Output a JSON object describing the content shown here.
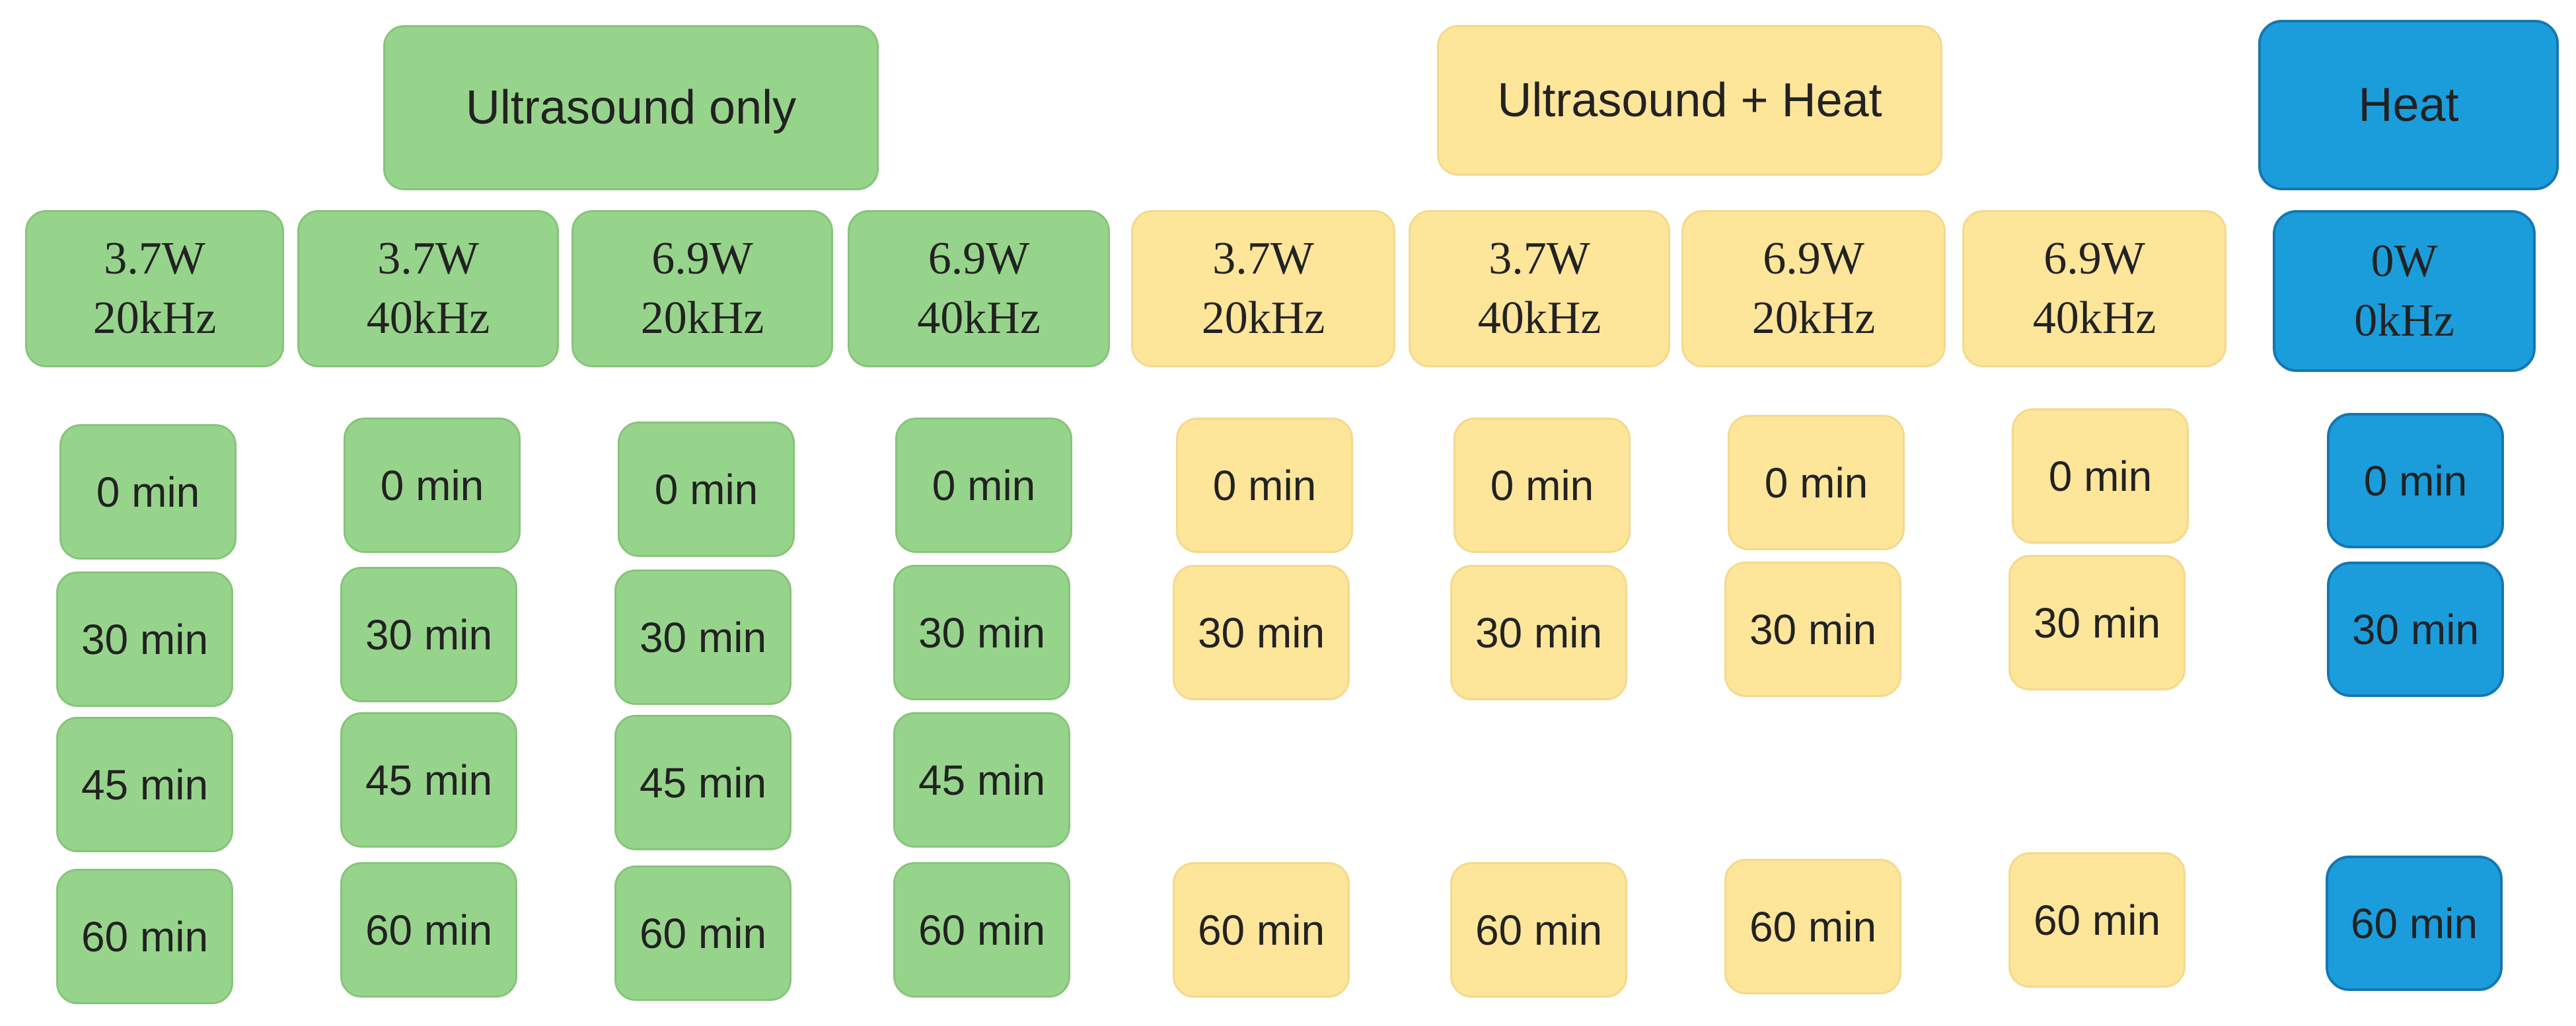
{
  "groups": [
    {
      "name": "Ultrasound only",
      "color": "#97d48b",
      "conditions": [
        {
          "power": "3.7W",
          "freq": "20kHz",
          "times": [
            "0 min",
            "30 min",
            "45 min",
            "60 min"
          ]
        },
        {
          "power": "3.7W",
          "freq": "40kHz",
          "times": [
            "0 min",
            "30 min",
            "45 min",
            "60 min"
          ]
        },
        {
          "power": "6.9W",
          "freq": "20kHz",
          "times": [
            "0 min",
            "30 min",
            "45 min",
            "60 min"
          ]
        },
        {
          "power": "6.9W",
          "freq": "40kHz",
          "times": [
            "0 min",
            "30 min",
            "45 min",
            "60 min"
          ]
        }
      ]
    },
    {
      "name": "Ultrasound + Heat",
      "color": "#fde59a",
      "conditions": [
        {
          "power": "3.7W",
          "freq": "20kHz",
          "times": [
            "0 min",
            "30 min",
            "60 min"
          ]
        },
        {
          "power": "3.7W",
          "freq": "40kHz",
          "times": [
            "0 min",
            "30 min",
            "60 min"
          ]
        },
        {
          "power": "6.9W",
          "freq": "20kHz",
          "times": [
            "0 min",
            "30 min",
            "60 min"
          ]
        },
        {
          "power": "6.9W",
          "freq": "40kHz",
          "times": [
            "0 min",
            "30 min",
            "60 min"
          ]
        }
      ]
    },
    {
      "name": "Heat",
      "color": "#1b9ddc",
      "conditions": [
        {
          "power": "0W",
          "freq": "0kHz",
          "times": [
            "0 min",
            "30 min",
            "60 min"
          ]
        }
      ]
    }
  ]
}
